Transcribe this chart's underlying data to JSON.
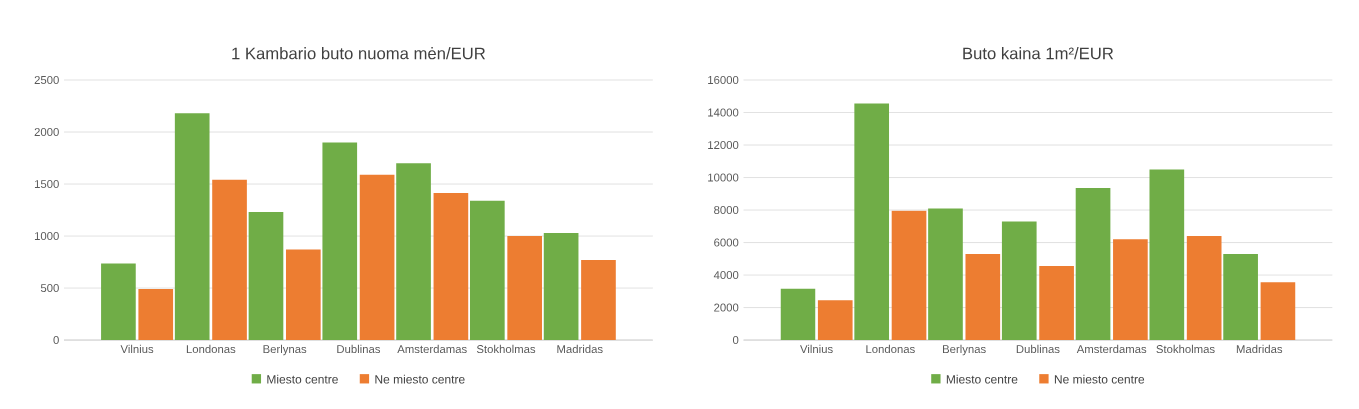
{
  "chart_data": [
    {
      "type": "bar",
      "title": "1 Kambario buto nuoma mėn/EUR",
      "categories": [
        "Vilnius",
        "Londonas",
        "Berlynas",
        "Dublinas",
        "Amsterdamas",
        "Stokholmas",
        "Madridas"
      ],
      "series": [
        {
          "name": "Miesto centre",
          "color": "#70ad47",
          "values": [
            735,
            2180,
            1230,
            1900,
            1700,
            1340,
            1030
          ]
        },
        {
          "name": "Ne miesto centre",
          "color": "#ed7d31",
          "values": [
            490,
            1540,
            870,
            1590,
            1415,
            1000,
            770
          ]
        }
      ],
      "ylim": [
        0,
        2500
      ],
      "yticks": [
        0,
        500,
        1000,
        1500,
        2000,
        2500
      ],
      "grid": "y",
      "legend": "bottom"
    },
    {
      "type": "bar",
      "title": "Buto kaina 1m²/EUR",
      "categories": [
        "Vilnius",
        "Londonas",
        "Berlynas",
        "Dublinas",
        "Amsterdamas",
        "Stokholmas",
        "Madridas"
      ],
      "series": [
        {
          "name": "Miesto centre",
          "color": "#70ad47",
          "values": [
            3150,
            14550,
            8100,
            7300,
            9350,
            10500,
            5300
          ]
        },
        {
          "name": "Ne miesto centre",
          "color": "#ed7d31",
          "values": [
            2450,
            7950,
            5300,
            4550,
            6200,
            6400,
            3550
          ]
        }
      ],
      "ylim": [
        0,
        16000
      ],
      "yticks": [
        0,
        2000,
        4000,
        6000,
        8000,
        10000,
        12000,
        14000,
        16000
      ],
      "grid": "y",
      "legend": "bottom"
    }
  ]
}
